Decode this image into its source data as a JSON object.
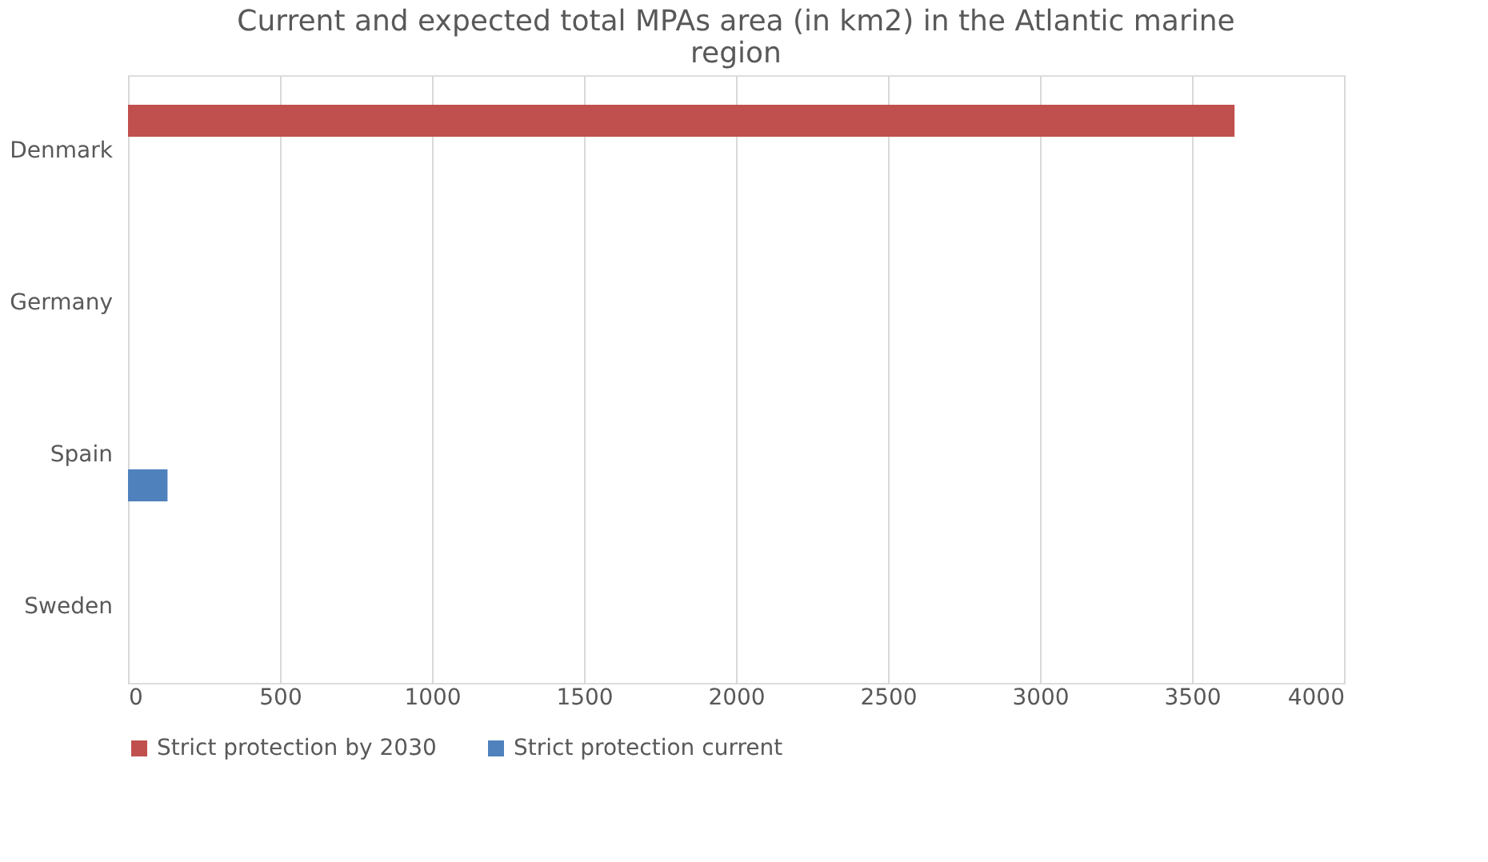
{
  "chart_data": {
    "type": "bar",
    "orientation": "horizontal",
    "title": "Current and expected total MPAs area (in km2) in the Atlantic marine region",
    "categories": [
      "Denmark",
      "Germany",
      "Spain",
      "Sweden"
    ],
    "series": [
      {
        "name": "Strict protection by 2030",
        "color": "#c0504d",
        "values": [
          3640,
          null,
          null,
          null
        ]
      },
      {
        "name": "Strict protection current",
        "color": "#4f81bd",
        "values": [
          null,
          null,
          130,
          null
        ]
      }
    ],
    "xlim": [
      0,
      4000
    ],
    "xticks": [
      0,
      500,
      1000,
      1500,
      2000,
      2500,
      3000,
      3500,
      4000
    ],
    "grid": "x",
    "legend": "bottom"
  }
}
